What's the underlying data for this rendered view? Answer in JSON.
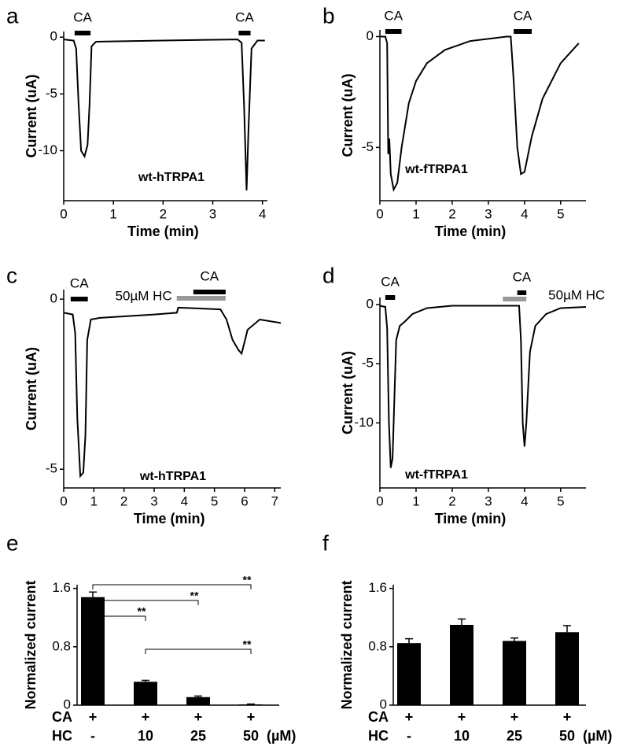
{
  "chart_data": [
    {
      "type": "line",
      "panel": "a",
      "annotation": "wt-hTRPA1",
      "xlabel": "Time (min)",
      "ylabel": "Current (uA)",
      "xlim": [
        0,
        4.1
      ],
      "ylim": [
        -14.4,
        0.5
      ],
      "xticks": [
        0,
        1,
        2,
        3,
        4
      ],
      "yticks": [
        0,
        -5,
        -10
      ],
      "color": "#000000",
      "x": [
        0,
        0.2,
        0.25,
        0.3,
        0.35,
        0.42,
        0.48,
        0.52,
        0.56,
        0.65,
        2,
        3.5,
        3.58,
        3.63,
        3.68,
        3.72,
        3.78,
        3.9,
        4.05
      ],
      "values": [
        -0.2,
        -0.3,
        -1,
        -6,
        -10,
        -10.5,
        -9.5,
        -6,
        -0.8,
        -0.4,
        -0.3,
        -0.2,
        -0.5,
        -6,
        -13.5,
        -8,
        -1,
        -0.3,
        -0.3
      ],
      "bars": [
        {
          "label": "CA",
          "color": "#000000",
          "x": [
            0.22,
            0.54
          ]
        },
        {
          "label": "CA",
          "color": "#000000",
          "x": [
            3.52,
            3.76
          ]
        }
      ]
    },
    {
      "type": "line",
      "panel": "b",
      "annotation": "wt-fTRPA1",
      "xlabel": "Time (min)",
      "ylabel": "Current (uA)",
      "xlim": [
        0,
        5.7
      ],
      "ylim": [
        -7.4,
        0.3
      ],
      "xticks": [
        0,
        1,
        2,
        3,
        4,
        5
      ],
      "yticks": [
        0,
        -5
      ],
      "color": "#000000",
      "x": [
        0,
        0.15,
        0.2,
        0.23,
        0.26,
        0.3,
        0.38,
        0.48,
        0.6,
        0.8,
        1,
        1.3,
        1.8,
        2.5,
        3.5,
        3.62,
        3.7,
        3.8,
        3.9,
        4,
        4.2,
        4.5,
        5,
        5.5
      ],
      "values": [
        0,
        0,
        -0.3,
        -5.3,
        -4.6,
        -6.2,
        -6.9,
        -6.6,
        -5,
        -3,
        -2,
        -1.2,
        -0.6,
        -0.2,
        0,
        0,
        -2,
        -5,
        -6.2,
        -6.1,
        -4.5,
        -2.8,
        -1.2,
        -0.3
      ],
      "bars": [
        {
          "label": "CA",
          "color": "#000000",
          "x": [
            0.15,
            0.6
          ]
        },
        {
          "label": "CA",
          "color": "#000000",
          "x": [
            3.7,
            4.2
          ]
        }
      ]
    },
    {
      "type": "line",
      "panel": "c",
      "annotation": "wt-hTRPA1",
      "xlabel": "Time (min)",
      "ylabel": "Current (uA)",
      "xlim": [
        0,
        7.2
      ],
      "ylim": [
        -5.55,
        0.28
      ],
      "xticks": [
        0,
        1,
        2,
        3,
        4,
        5,
        6,
        7
      ],
      "yticks": [
        0,
        -5
      ],
      "color": "#000000",
      "x": [
        0,
        0.3,
        0.38,
        0.45,
        0.55,
        0.65,
        0.72,
        0.78,
        0.9,
        1.2,
        3,
        3.75,
        3.8,
        5.2,
        5.4,
        5.6,
        5.8,
        5.9,
        6.1,
        6.5,
        7.2
      ],
      "values": [
        -0.4,
        -0.45,
        -1,
        -3.5,
        -5.2,
        -5.1,
        -4,
        -1.2,
        -0.6,
        -0.55,
        -0.45,
        -0.4,
        -0.25,
        -0.3,
        -0.6,
        -1.2,
        -1.5,
        -1.6,
        -0.9,
        -0.6,
        -0.7
      ],
      "bars": [
        {
          "label": "CA",
          "color": "#000000",
          "x": [
            0.23,
            0.8
          ]
        },
        {
          "label": "50µM HC",
          "color": "#999999",
          "x": [
            3.75,
            5.37
          ]
        },
        {
          "label": "CA",
          "color": "#000000",
          "x": [
            4.3,
            5.37
          ]
        }
      ]
    },
    {
      "type": "line",
      "panel": "d",
      "annotation": "wt-fTRPA1",
      "xlabel": "Time (min)",
      "ylabel": "Current (uA)",
      "xlim": [
        0,
        5.7
      ],
      "ylim": [
        -15.5,
        0.6
      ],
      "xticks": [
        0,
        1,
        2,
        3,
        4,
        5
      ],
      "yticks": [
        0,
        -5,
        -10
      ],
      "color": "#000000",
      "x": [
        0,
        0.15,
        0.2,
        0.25,
        0.3,
        0.35,
        0.4,
        0.45,
        0.55,
        0.7,
        0.9,
        1.3,
        2,
        3.85,
        3.9,
        3.95,
        4,
        4.05,
        4.15,
        4.3,
        4.6,
        5,
        5.7
      ],
      "values": [
        -0.1,
        -0.2,
        -2,
        -10,
        -13.8,
        -13,
        -8,
        -3,
        -1.8,
        -1.4,
        -0.8,
        -0.3,
        -0.1,
        -0.1,
        -3,
        -10,
        -12,
        -10,
        -4,
        -1.8,
        -0.8,
        -0.3,
        -0.2
      ],
      "bars": [
        {
          "label": "CA",
          "color": "#000000",
          "x": [
            0.15,
            0.42
          ]
        },
        {
          "label": "50µM HC",
          "color": "#999999",
          "x": [
            3.4,
            4.05
          ]
        },
        {
          "label": "CA",
          "color": "#000000",
          "x": [
            3.8,
            4.05
          ]
        }
      ]
    },
    {
      "type": "bar",
      "panel": "e",
      "ylabel": "Normalized current",
      "ylim": [
        0,
        1.65
      ],
      "yticks": [
        0,
        0.8,
        1.6
      ],
      "color": "#000000",
      "row_labels": [
        "CA",
        "HC"
      ],
      "ca": [
        "+",
        "+",
        "+",
        "+"
      ],
      "categories": [
        "-",
        "10",
        "25",
        "50"
      ],
      "unit": "(µM)",
      "values": [
        1.48,
        0.32,
        0.11,
        0.01
      ],
      "errors": [
        0.07,
        0.02,
        0.015,
        0.005
      ],
      "significance": [
        {
          "label": "**",
          "pair": [
            0,
            1
          ]
        },
        {
          "label": "**",
          "pair": [
            0,
            2
          ]
        },
        {
          "label": "**",
          "pair": [
            0,
            3
          ]
        },
        {
          "label": "**",
          "pair": [
            1,
            3
          ]
        }
      ]
    },
    {
      "type": "bar",
      "panel": "f",
      "ylabel": "Normalized current",
      "ylim": [
        0,
        1.65
      ],
      "yticks": [
        0,
        0.8,
        1.6
      ],
      "color": "#000000",
      "row_labels": [
        "CA",
        "HC"
      ],
      "ca": [
        "+",
        "+",
        "+",
        "+"
      ],
      "categories": [
        "-",
        "10",
        "25",
        "50"
      ],
      "unit": "(µM)",
      "values": [
        0.85,
        1.1,
        0.88,
        1.0
      ],
      "errors": [
        0.06,
        0.08,
        0.04,
        0.09
      ]
    }
  ]
}
